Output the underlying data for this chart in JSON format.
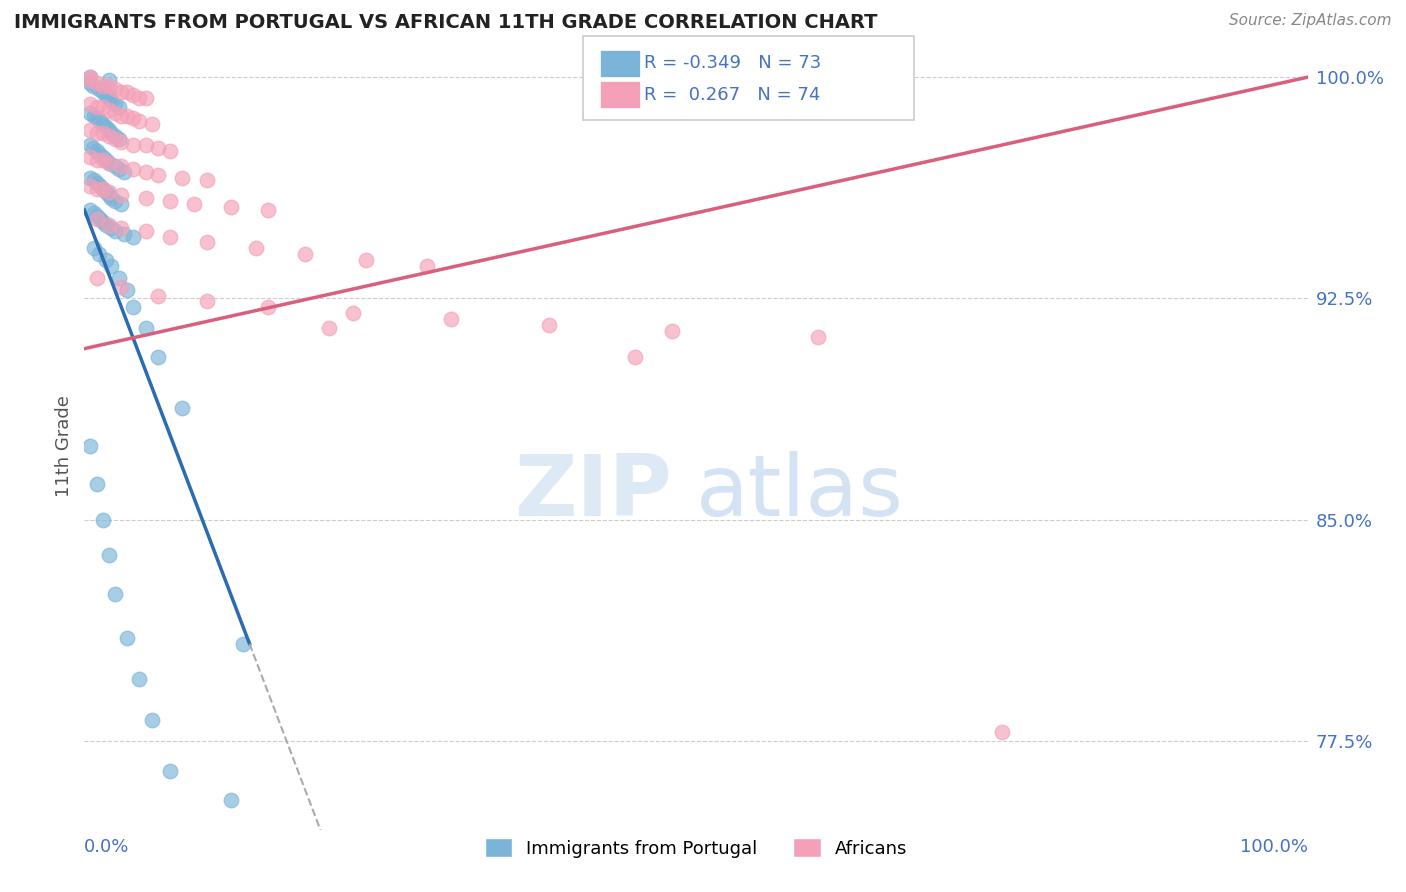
{
  "title": "IMMIGRANTS FROM PORTUGAL VS AFRICAN 11TH GRADE CORRELATION CHART",
  "source": "Source: ZipAtlas.com",
  "ylabel": "11th Grade",
  "y_min": 0.745,
  "y_max": 1.005,
  "x_min": 0.0,
  "x_max": 1.0,
  "y_ticks": [
    0.775,
    0.85,
    0.925,
    1.0
  ],
  "y_tick_labels": [
    "77.5%",
    "85.0%",
    "92.5%",
    "100.0%"
  ],
  "r_blue": -0.349,
  "n_blue": 73,
  "r_pink": 0.267,
  "n_pink": 74,
  "blue_color": "#7ab4d8",
  "pink_color": "#f4a0b8",
  "blue_line_color": "#2b6cb0",
  "pink_line_color": "#d9607a",
  "legend_label_blue": "Immigrants from Portugal",
  "legend_label_pink": "Africans",
  "blue_scatter_x": [
    0.005,
    0.007,
    0.012,
    0.015,
    0.018,
    0.02,
    0.02,
    0.022,
    0.025,
    0.028,
    0.005,
    0.008,
    0.01,
    0.013,
    0.015,
    0.018,
    0.02,
    0.022,
    0.025,
    0.028,
    0.005,
    0.007,
    0.01,
    0.012,
    0.015,
    0.018,
    0.02,
    0.025,
    0.028,
    0.032,
    0.005,
    0.008,
    0.01,
    0.013,
    0.015,
    0.018,
    0.02,
    0.022,
    0.025,
    0.03,
    0.005,
    0.008,
    0.01,
    0.013,
    0.015,
    0.018,
    0.022,
    0.025,
    0.032,
    0.04,
    0.008,
    0.012,
    0.018,
    0.022,
    0.028,
    0.035,
    0.04,
    0.05,
    0.06,
    0.08,
    0.005,
    0.01,
    0.015,
    0.02,
    0.025,
    0.035,
    0.045,
    0.055,
    0.07,
    0.12,
    0.005,
    0.02,
    0.13
  ],
  "blue_scatter_y": [
    0.998,
    0.997,
    0.996,
    0.995,
    0.994,
    0.994,
    0.993,
    0.992,
    0.991,
    0.99,
    0.988,
    0.987,
    0.986,
    0.985,
    0.984,
    0.983,
    0.982,
    0.981,
    0.98,
    0.979,
    0.977,
    0.976,
    0.975,
    0.974,
    0.973,
    0.972,
    0.971,
    0.97,
    0.969,
    0.968,
    0.966,
    0.965,
    0.964,
    0.963,
    0.962,
    0.961,
    0.96,
    0.959,
    0.958,
    0.957,
    0.955,
    0.954,
    0.953,
    0.952,
    0.951,
    0.95,
    0.949,
    0.948,
    0.947,
    0.946,
    0.942,
    0.94,
    0.938,
    0.936,
    0.932,
    0.928,
    0.922,
    0.915,
    0.905,
    0.888,
    0.875,
    0.862,
    0.85,
    0.838,
    0.825,
    0.81,
    0.796,
    0.782,
    0.765,
    0.755,
    1.0,
    0.999,
    0.808
  ],
  "pink_scatter_x": [
    0.005,
    0.01,
    0.015,
    0.02,
    0.025,
    0.03,
    0.035,
    0.04,
    0.045,
    0.05,
    0.005,
    0.01,
    0.015,
    0.02,
    0.025,
    0.03,
    0.035,
    0.04,
    0.045,
    0.055,
    0.005,
    0.01,
    0.015,
    0.02,
    0.025,
    0.03,
    0.04,
    0.05,
    0.06,
    0.07,
    0.005,
    0.01,
    0.015,
    0.02,
    0.03,
    0.04,
    0.05,
    0.06,
    0.08,
    0.1,
    0.005,
    0.01,
    0.015,
    0.02,
    0.03,
    0.05,
    0.07,
    0.09,
    0.12,
    0.15,
    0.01,
    0.02,
    0.03,
    0.05,
    0.07,
    0.1,
    0.14,
    0.18,
    0.23,
    0.28,
    0.01,
    0.03,
    0.06,
    0.1,
    0.15,
    0.22,
    0.3,
    0.38,
    0.48,
    0.6,
    0.005,
    0.2,
    0.45,
    0.75
  ],
  "pink_scatter_y": [
    0.999,
    0.998,
    0.997,
    0.997,
    0.996,
    0.995,
    0.995,
    0.994,
    0.993,
    0.993,
    0.991,
    0.99,
    0.99,
    0.989,
    0.988,
    0.987,
    0.987,
    0.986,
    0.985,
    0.984,
    0.982,
    0.981,
    0.981,
    0.98,
    0.979,
    0.978,
    0.977,
    0.977,
    0.976,
    0.975,
    0.973,
    0.972,
    0.972,
    0.971,
    0.97,
    0.969,
    0.968,
    0.967,
    0.966,
    0.965,
    0.963,
    0.962,
    0.962,
    0.961,
    0.96,
    0.959,
    0.958,
    0.957,
    0.956,
    0.955,
    0.952,
    0.95,
    0.949,
    0.948,
    0.946,
    0.944,
    0.942,
    0.94,
    0.938,
    0.936,
    0.932,
    0.929,
    0.926,
    0.924,
    0.922,
    0.92,
    0.918,
    0.916,
    0.914,
    0.912,
    1.0,
    0.915,
    0.905,
    0.778
  ],
  "blue_line_x_start": 0.0,
  "blue_line_x_solid_end": 0.135,
  "blue_line_x_end": 0.55,
  "blue_line_y_at_0": 0.955,
  "blue_line_y_at_solid_end": 0.808,
  "pink_line_x_start": 0.0,
  "pink_line_x_end": 1.0,
  "pink_line_y_at_0": 0.908,
  "pink_line_y_at_1": 1.0
}
